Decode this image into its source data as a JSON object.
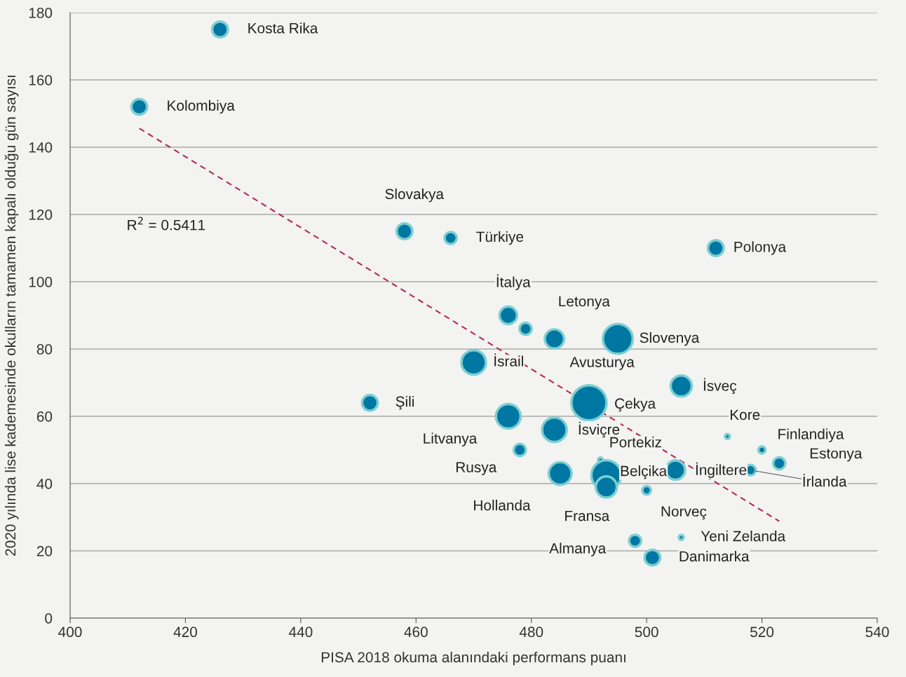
{
  "chart_data": {
    "type": "bubble",
    "xlabel": "PISA 2018 okuma alanındaki performans puanı",
    "ylabel": "2020 yılında lise kademesinde okulların tamamen kapalı olduğu gün sayısı",
    "xlim": [
      400,
      540
    ],
    "xticks": [
      400,
      420,
      440,
      460,
      480,
      500,
      520,
      540
    ],
    "ylim": [
      0,
      180
    ],
    "yticks": [
      0,
      20,
      40,
      60,
      80,
      100,
      120,
      140,
      160,
      180
    ],
    "grid": "y",
    "annotations": [
      "R$^{2}$ = 0.5411"
    ],
    "series": [
      {
        "color": "#0077a3",
        "x": [
          426,
          412,
          458,
          466,
          512,
          476,
          479,
          484,
          495,
          470,
          506,
          452,
          490,
          476,
          484,
          514,
          520,
          478,
          492,
          523,
          505,
          518,
          485,
          493,
          493,
          500,
          506,
          498,
          501
        ],
        "values": [
          175,
          152,
          115,
          113,
          110,
          90,
          86,
          83,
          83,
          76,
          69,
          64,
          64,
          60,
          56,
          54,
          50,
          50,
          47,
          46,
          44,
          44,
          43,
          42.5,
          39,
          38,
          24,
          23,
          18
        ],
        "sizes": [
          0.2,
          0.2,
          0.2,
          0.12,
          0.2,
          0.25,
          0.12,
          0.3,
          0.72,
          0.49,
          0.36,
          0.2,
          1,
          0.49,
          0.49,
          0.02,
          0.04,
          0.12,
          0.02,
          0.12,
          0.3,
          0.09,
          0.42,
          0.72,
          0.36,
          0.06,
          0.02,
          0.12,
          0.2
        ],
        "value_labels": [
          "Kosta Rika",
          "Kolombiya",
          "Slovakya",
          "Türkiye",
          "Polonya",
          "İtalya",
          "Letonya",
          "Avusturya",
          "Slovenya",
          "İsrail",
          "İsveç",
          "Şili",
          "Çekya",
          "Litvanya",
          "İsviçre",
          "Kore",
          "Finlandiya",
          "Rusya",
          "Portekiz",
          "Estonya",
          "İngiltere",
          "İrlanda",
          "Hollanda",
          "Belçika",
          "Fransa",
          "Norveç",
          "Yeni Zelanda",
          "Almanya",
          "Danimarka"
        ]
      },
      {
        "type": "line",
        "color": "#b5295a",
        "line_style": "dashed",
        "x": [
          412,
          523
        ],
        "values": [
          145.6,
          28.8
        ]
      }
    ]
  }
}
